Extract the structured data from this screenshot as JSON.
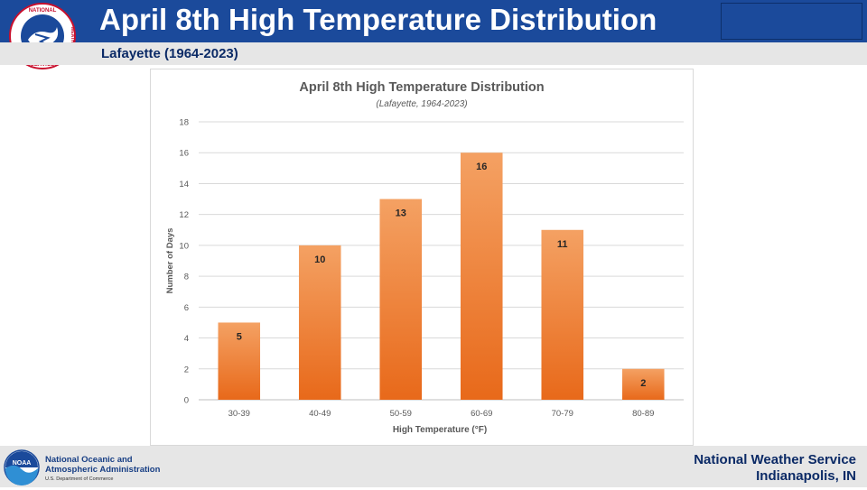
{
  "header": {
    "title": "April 8th High Temperature Distribution",
    "subtitle": "Lafayette (1964-2023)",
    "logo_text": "NATIONAL WEATHER SERVICE",
    "logo_letters_top": "NATIONAL",
    "logo_letters_bottom": "SERVICE",
    "logo_letters_side": "WEATHER"
  },
  "footer": {
    "noaa_logo_text": "NOAA",
    "noaa_line1": "National Oceanic and",
    "noaa_line2": "Atmospheric Administration",
    "noaa_line3": "U.S. Department of Commerce",
    "nws_line1": "National Weather Service",
    "nws_line2": "Indianapolis, IN"
  },
  "colors": {
    "header_blue": "#1b4a9b",
    "bar_top": "#f4a163",
    "bar_bottom": "#e8691a",
    "footer_gray": "#e6e6e6"
  },
  "chart_data": {
    "type": "bar",
    "title": "April 8th High Temperature Distribution",
    "subtitle": "(Lafayette, 1964-2023)",
    "xlabel": "High Temperature (°F)",
    "ylabel": "Number of Days",
    "categories": [
      "30-39",
      "40-49",
      "50-59",
      "60-69",
      "70-79",
      "80-89"
    ],
    "values": [
      5,
      10,
      13,
      16,
      11,
      2
    ],
    "data_labels": [
      "5",
      "10",
      "13",
      "16",
      "11",
      "2"
    ],
    "ylim": [
      0,
      18
    ],
    "yticks": [
      "0",
      "2",
      "4",
      "6",
      "8",
      "10",
      "12",
      "14",
      "16",
      "18"
    ],
    "grid": true,
    "legend": "none"
  }
}
